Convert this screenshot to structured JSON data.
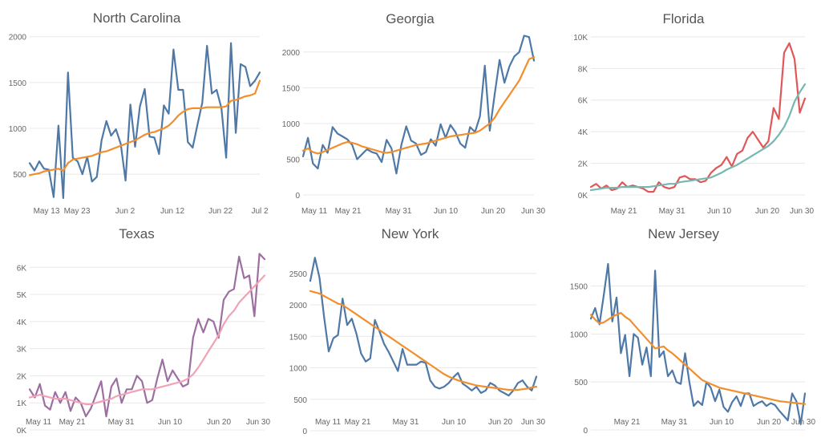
{
  "chart_data": [
    {
      "type": "line",
      "title": "North Carolina",
      "x_labels": [
        "May 13",
        "May 23",
        "Jun 2",
        "Jun 12",
        "Jun 22",
        "Jul 2"
      ],
      "y_ticks": [
        "500",
        "1000",
        "1500",
        "2000"
      ],
      "y_values": [
        500,
        1000,
        1500,
        2000
      ],
      "ylim": [
        230,
        2050
      ],
      "series": [
        {
          "color": "#4e79a7",
          "values": [
            620,
            540,
            640,
            560,
            550,
            250,
            1030,
            240,
            1610,
            680,
            640,
            500,
            690,
            420,
            470,
            870,
            1080,
            920,
            990,
            830,
            430,
            1260,
            800,
            1240,
            1430,
            910,
            900,
            720,
            1250,
            1160,
            1860,
            1420,
            1420,
            850,
            790,
            1040,
            1280,
            1900,
            1380,
            1420,
            1220,
            680,
            1930,
            950,
            1700,
            1670,
            1460,
            1520,
            1610
          ]
        },
        {
          "color": "#f28e2b",
          "values": [
            490,
            500,
            510,
            530,
            540,
            550,
            560,
            540,
            620,
            660,
            670,
            680,
            690,
            700,
            720,
            740,
            750,
            770,
            790,
            810,
            830,
            850,
            870,
            900,
            930,
            950,
            960,
            980,
            1000,
            1030,
            1080,
            1140,
            1180,
            1210,
            1220,
            1220,
            1220,
            1230,
            1230,
            1230,
            1230,
            1240,
            1300,
            1310,
            1330,
            1350,
            1360,
            1380,
            1520
          ]
        }
      ]
    },
    {
      "type": "line",
      "title": "Georgia",
      "x_labels": [
        "May 11",
        "May 21",
        "May 31",
        "Jun 10",
        "Jun 20",
        "Jun 30"
      ],
      "y_ticks": [
        "0",
        "500",
        "1000",
        "1500",
        "2000"
      ],
      "y_values": [
        0,
        500,
        1000,
        1500,
        2000
      ],
      "ylim": [
        0,
        2280
      ],
      "series": [
        {
          "color": "#4e79a7",
          "values": [
            540,
            800,
            440,
            370,
            700,
            590,
            950,
            860,
            820,
            780,
            700,
            500,
            570,
            640,
            600,
            580,
            460,
            770,
            650,
            300,
            700,
            960,
            760,
            720,
            560,
            600,
            780,
            690,
            990,
            800,
            980,
            880,
            720,
            660,
            950,
            880,
            1100,
            1810,
            900,
            1410,
            1890,
            1570,
            1800,
            1940,
            2000,
            2230,
            2210,
            1880
          ]
        },
        {
          "color": "#f28e2b",
          "values": [
            620,
            650,
            600,
            580,
            600,
            630,
            660,
            690,
            720,
            740,
            730,
            710,
            680,
            660,
            640,
            620,
            600,
            590,
            600,
            620,
            640,
            660,
            680,
            700,
            710,
            720,
            740,
            760,
            780,
            800,
            820,
            830,
            840,
            850,
            860,
            870,
            900,
            950,
            1000,
            1080,
            1200,
            1300,
            1400,
            1500,
            1600,
            1750,
            1900,
            1930
          ]
        }
      ]
    },
    {
      "type": "line",
      "title": "Florida",
      "x_labels": [
        "May 21",
        "May 31",
        "Jun 10",
        "Jun 20",
        "Jun 30"
      ],
      "y_ticks": [
        "0K",
        "2K",
        "4K",
        "6K",
        "8K",
        "10K"
      ],
      "y_values": [
        0,
        2000,
        4000,
        6000,
        8000,
        10000
      ],
      "ylim": [
        0,
        10300
      ],
      "series": [
        {
          "color": "#e15759",
          "values": [
            500,
            700,
            400,
            600,
            300,
            400,
            800,
            500,
            600,
            500,
            400,
            200,
            200,
            800,
            500,
            400,
            500,
            1100,
            1200,
            1000,
            1000,
            800,
            900,
            1400,
            1700,
            1900,
            2400,
            1800,
            2600,
            2800,
            3600,
            4000,
            3500,
            3000,
            3400,
            5500,
            4800,
            9000,
            9600,
            8600,
            5200,
            6100
          ]
        },
        {
          "color": "#76b7b2",
          "values": [
            300,
            350,
            400,
            450,
            450,
            450,
            500,
            500,
            500,
            500,
            500,
            500,
            550,
            600,
            650,
            700,
            700,
            800,
            850,
            900,
            950,
            1000,
            1050,
            1100,
            1250,
            1400,
            1600,
            1750,
            1900,
            2100,
            2300,
            2500,
            2700,
            2900,
            3100,
            3400,
            3800,
            4300,
            5000,
            5900,
            6500,
            7000
          ]
        }
      ]
    },
    {
      "type": "line",
      "title": "Texas",
      "x_labels": [
        "May 11",
        "May 21",
        "May 31",
        "Jun 10",
        "Jun 20",
        "Jun 30"
      ],
      "y_ticks": [
        "0K",
        "1K",
        "2K",
        "3K",
        "4K",
        "5K",
        "6K"
      ],
      "y_values": [
        0,
        1000,
        2000,
        3000,
        4000,
        5000,
        6000
      ],
      "ylim": [
        0,
        6600
      ],
      "series": [
        {
          "color": "#9c6fa0",
          "values": [
            1500,
            1200,
            1700,
            900,
            750,
            1400,
            1000,
            1400,
            700,
            1200,
            1000,
            500,
            800,
            1300,
            1800,
            500,
            1600,
            1900,
            1000,
            1500,
            1500,
            2000,
            1800,
            1000,
            1100,
            1900,
            2600,
            1800,
            2200,
            1900,
            1600,
            1700,
            3400,
            4100,
            3600,
            4100,
            4000,
            3400,
            4800,
            5100,
            5200,
            6400,
            5600,
            5700,
            4200,
            6500,
            6300
          ]
        },
        {
          "color": "#f1a2b5",
          "values": [
            1200,
            1250,
            1300,
            1250,
            1200,
            1150,
            1150,
            1150,
            1100,
            1050,
            1000,
            950,
            950,
            1000,
            1050,
            1100,
            1150,
            1250,
            1300,
            1350,
            1400,
            1450,
            1500,
            1500,
            1500,
            1550,
            1600,
            1650,
            1700,
            1750,
            1800,
            1900,
            2050,
            2300,
            2600,
            2900,
            3200,
            3500,
            3900,
            4200,
            4400,
            4700,
            4900,
            5100,
            5300,
            5500,
            5700
          ]
        }
      ]
    },
    {
      "type": "line",
      "title": "New York",
      "x_labels": [
        "May 11",
        "May 21",
        "May 31",
        "Jun 10",
        "Jun 20",
        "Jun 30"
      ],
      "y_ticks": [
        "0",
        "500",
        "1000",
        "1500",
        "2000",
        "2500"
      ],
      "y_values": [
        0,
        500,
        1000,
        1500,
        2000,
        2500
      ],
      "ylim": [
        0,
        2880
      ],
      "series": [
        {
          "color": "#4e79a7",
          "values": [
            2380,
            2750,
            2430,
            1800,
            1260,
            1470,
            1520,
            2100,
            1680,
            1780,
            1540,
            1230,
            1100,
            1150,
            1760,
            1580,
            1380,
            1250,
            1100,
            950,
            1300,
            1050,
            1050,
            1050,
            1100,
            1080,
            800,
            700,
            670,
            700,
            760,
            850,
            920,
            750,
            700,
            640,
            700,
            600,
            640,
            760,
            720,
            640,
            600,
            560,
            640,
            760,
            800,
            700,
            640,
            860
          ]
        },
        {
          "color": "#f28e2b",
          "values": [
            2220,
            2200,
            2180,
            2140,
            2100,
            2060,
            2020,
            2000,
            1950,
            1900,
            1850,
            1800,
            1750,
            1700,
            1650,
            1600,
            1550,
            1500,
            1450,
            1400,
            1350,
            1300,
            1250,
            1200,
            1150,
            1100,
            1050,
            1000,
            950,
            900,
            860,
            830,
            800,
            780,
            760,
            740,
            720,
            710,
            700,
            690,
            680,
            670,
            660,
            650,
            650,
            650,
            660,
            670,
            690,
            700
          ]
        }
      ]
    },
    {
      "type": "line",
      "title": "New Jersey",
      "x_labels": [
        "May 21",
        "May 31",
        "Jun 10",
        "Jun 20",
        "Jun 30"
      ],
      "y_ticks": [
        "0",
        "500",
        "1000",
        "1500"
      ],
      "y_values": [
        0,
        500,
        1000,
        1500
      ],
      "ylim": [
        0,
        1880
      ],
      "series": [
        {
          "color": "#4e79a7",
          "values": [
            1160,
            1270,
            1100,
            1400,
            1730,
            1130,
            1380,
            800,
            990,
            560,
            1000,
            960,
            680,
            860,
            560,
            1660,
            760,
            820,
            560,
            620,
            500,
            480,
            800,
            500,
            250,
            300,
            260,
            500,
            440,
            300,
            420,
            240,
            190,
            290,
            350,
            250,
            380,
            380,
            250,
            280,
            300,
            250,
            280,
            260,
            200,
            150,
            100,
            380,
            300,
            60,
            380
          ]
        },
        {
          "color": "#f28e2b",
          "values": [
            1200,
            1150,
            1110,
            1120,
            1150,
            1180,
            1200,
            1220,
            1180,
            1150,
            1100,
            1050,
            1000,
            950,
            900,
            850,
            860,
            870,
            830,
            800,
            760,
            720,
            680,
            640,
            600,
            560,
            520,
            500,
            480,
            460,
            440,
            430,
            420,
            410,
            400,
            390,
            380,
            370,
            360,
            350,
            340,
            330,
            320,
            310,
            300,
            295,
            290,
            285,
            280,
            275,
            270
          ]
        }
      ]
    }
  ]
}
